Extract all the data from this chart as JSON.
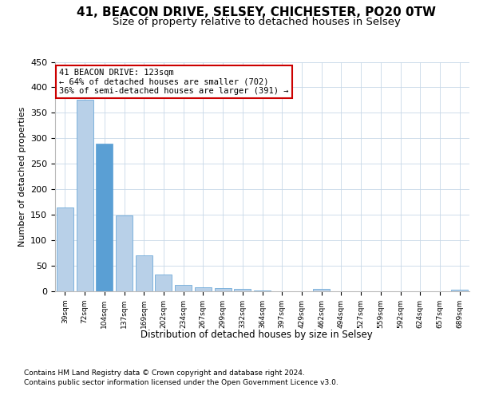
{
  "title1": "41, BEACON DRIVE, SELSEY, CHICHESTER, PO20 0TW",
  "title2": "Size of property relative to detached houses in Selsey",
  "xlabel": "Distribution of detached houses by size in Selsey",
  "ylabel": "Number of detached properties",
  "footer1": "Contains HM Land Registry data © Crown copyright and database right 2024.",
  "footer2": "Contains public sector information licensed under the Open Government Licence v3.0.",
  "annotation_line1": "41 BEACON DRIVE: 123sqm",
  "annotation_line2": "← 64% of detached houses are smaller (702)",
  "annotation_line3": "36% of semi-detached houses are larger (391) →",
  "bar_color": "#b8d0e8",
  "bar_edge_color": "#5a9fd4",
  "highlight_bar_index": 2,
  "highlight_color": "#5a9fd4",
  "categories": [
    "39sqm",
    "72sqm",
    "104sqm",
    "137sqm",
    "169sqm",
    "202sqm",
    "234sqm",
    "267sqm",
    "299sqm",
    "332sqm",
    "364sqm",
    "397sqm",
    "429sqm",
    "462sqm",
    "494sqm",
    "527sqm",
    "559sqm",
    "592sqm",
    "624sqm",
    "657sqm",
    "689sqm"
  ],
  "values": [
    165,
    375,
    290,
    148,
    70,
    33,
    13,
    8,
    7,
    5,
    2,
    0,
    0,
    4,
    0,
    0,
    0,
    0,
    0,
    0,
    3
  ],
  "ylim": [
    0,
    450
  ],
  "yticks": [
    0,
    50,
    100,
    150,
    200,
    250,
    300,
    350,
    400,
    450
  ],
  "background_color": "#ffffff",
  "grid_color": "#c8d8e8",
  "title1_fontsize": 11,
  "title2_fontsize": 9.5,
  "annotation_box_color": "#ffffff",
  "annotation_box_edge": "#cc0000"
}
